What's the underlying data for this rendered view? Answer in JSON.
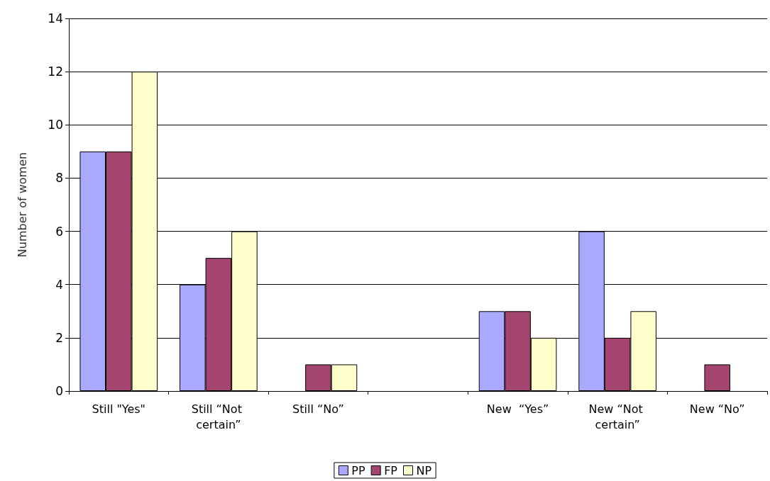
{
  "chart_data": {
    "type": "bar",
    "ylabel": "Number of women",
    "categories": [
      "Still \"Yes\"",
      "Still “Not certain”",
      "Still “No”",
      null,
      "New  “Yes”",
      "New “Not certain”",
      "New “No”"
    ],
    "series": [
      {
        "name": "PP",
        "color": "#a9a9ff",
        "values": [
          9,
          4,
          0,
          null,
          3,
          6,
          0
        ]
      },
      {
        "name": "FP",
        "color": "#a3456f",
        "values": [
          9,
          5,
          1,
          null,
          3,
          2,
          1
        ]
      },
      {
        "name": "NP",
        "color": "#ffffcc",
        "values": [
          12,
          6,
          1,
          null,
          2,
          3,
          0
        ]
      }
    ],
    "ylim": [
      0,
      14
    ],
    "yticks": [
      0,
      2,
      4,
      6,
      8,
      10,
      12,
      14
    ],
    "grid": "y",
    "legend": "bottom"
  }
}
